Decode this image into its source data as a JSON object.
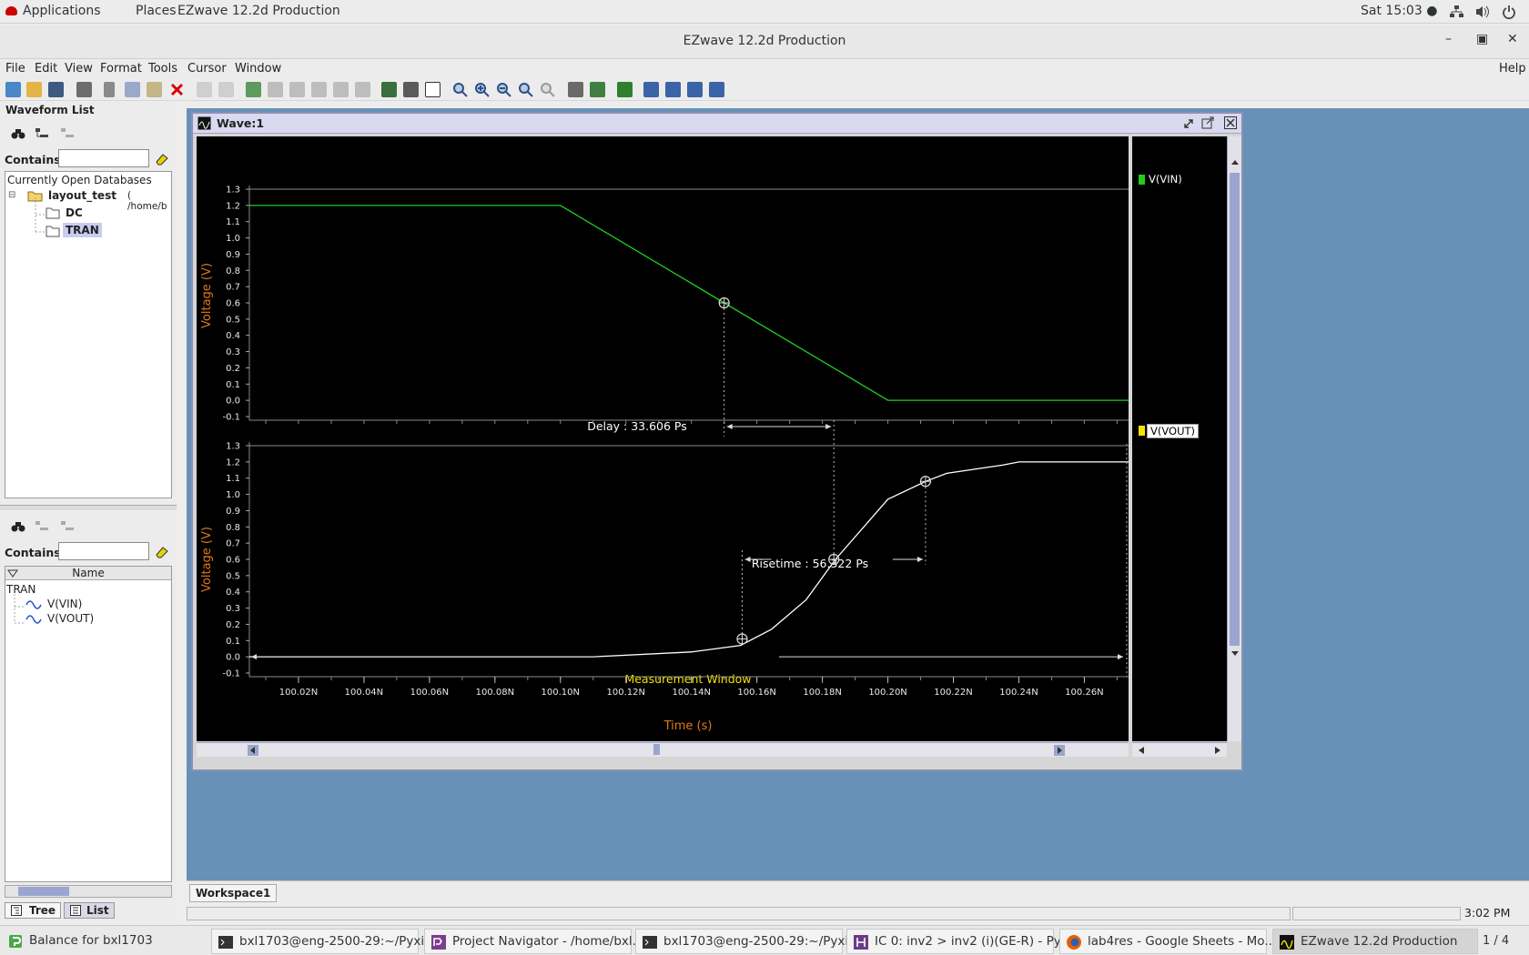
{
  "topbar": {
    "applications": "Applications",
    "places": "Places",
    "app_name": "EZwave 12.2d Production",
    "clock": "Sat 15:03 ●"
  },
  "window": {
    "title": "EZwave 12.2d Production"
  },
  "menu": {
    "file": "File",
    "edit": "Edit",
    "view": "View",
    "format": "Format",
    "tools": "Tools",
    "cursor": "Cursor",
    "window": "Window",
    "help": "Help"
  },
  "waveform_list": {
    "title": "Waveform List",
    "contains_label": "Contains",
    "contains_value": "",
    "header": "Currently Open Databases",
    "db_name": "layout_test",
    "db_path": "( /home/b",
    "children": [
      "DC",
      "TRAN"
    ]
  },
  "signal_panel": {
    "contains_label": "Contains",
    "contains_value": "",
    "column": "Name",
    "group": "TRAN",
    "signals": [
      "V(VIN)",
      "V(VOUT)"
    ],
    "tabs": [
      "Tree",
      "List"
    ]
  },
  "wave_window": {
    "title": "Wave:1",
    "legend": [
      {
        "label": "V(VIN)",
        "color": "#22cc22",
        "selected": false
      },
      {
        "label": "V(VOUT)",
        "color": "#f5e200",
        "selected": true
      }
    ],
    "xlabel": "Time (s)",
    "delay_label": "Delay : 33.606 Ps",
    "risetime_label": "Risetime : 56.322 Ps",
    "measurement_label": "Measurement Window"
  },
  "chart_data": [
    {
      "type": "line",
      "ylabel": "Voltage (V)",
      "ylim": [
        -0.1,
        1.3
      ],
      "yticks": [
        "1.3",
        "1.2",
        "1.1",
        "1.0",
        "0.9",
        "0.8",
        "0.7",
        "0.6",
        "0.5",
        "0.4",
        "0.3",
        "0.2",
        "0.1",
        "0.0",
        "-0.1"
      ],
      "series": [
        {
          "name": "V(VIN)",
          "color": "#22cc22",
          "x": [
            100.005,
            100.1,
            100.2,
            100.2735
          ],
          "y": [
            1.2,
            1.2,
            0.0,
            0.0
          ]
        }
      ],
      "cursor": {
        "x": 100.15,
        "y": 0.6
      }
    },
    {
      "type": "line",
      "ylabel": "Voltage (V)",
      "ylim": [
        -0.1,
        1.3
      ],
      "yticks": [
        "1.3",
        "1.2",
        "1.1",
        "1.0",
        "0.9",
        "0.8",
        "0.7",
        "0.6",
        "0.5",
        "0.4",
        "0.3",
        "0.2",
        "0.1",
        "0.0",
        "-0.1"
      ],
      "xticks": [
        "100.02N",
        "100.04N",
        "100.06N",
        "100.08N",
        "100.10N",
        "100.12N",
        "100.14N",
        "100.16N",
        "100.18N",
        "100.20N",
        "100.22N",
        "100.24N",
        "100.26N"
      ],
      "xlim_ns": [
        100.005,
        100.2735
      ],
      "series": [
        {
          "name": "V(VOUT)",
          "color": "#ffffff",
          "x": [
            100.005,
            100.11,
            100.14,
            100.155,
            100.1645,
            100.175,
            100.184,
            100.2,
            100.2115,
            100.218,
            100.235,
            100.24,
            100.2735
          ],
          "y": [
            0.0,
            0.0,
            0.03,
            0.07,
            0.17,
            0.35,
            0.6,
            0.97,
            1.08,
            1.13,
            1.18,
            1.2,
            1.2
          ]
        }
      ],
      "cursors": [
        {
          "x": 100.1555,
          "y": 0.11
        },
        {
          "x": 100.1835,
          "y": 0.6
        },
        {
          "x": 100.2115,
          "y": 1.08
        }
      ]
    }
  ],
  "workspace": {
    "tab": "Workspace1"
  },
  "status": {
    "time": "3:02 PM"
  },
  "taskbar": {
    "items": [
      "Balance for bxl1703",
      "bxl1703@eng-2500-29:~/Pyxi...",
      "Project Navigator - /home/bxl...",
      "bxl1703@eng-2500-29:~/Pyxi...",
      "IC 0: inv2 > inv2 (i)(GE-R)  - Py...",
      "lab4res - Google Sheets - Mo...",
      "EZwave 12.2d Production"
    ],
    "pager": "1 / 4"
  },
  "colors": {
    "plot_bg": "#000000",
    "vin": "#22cc22",
    "vout": "#ffffff",
    "axis_label": "#e07a1a",
    "measurement": "#f5e200",
    "desktop": "#6791b6"
  }
}
